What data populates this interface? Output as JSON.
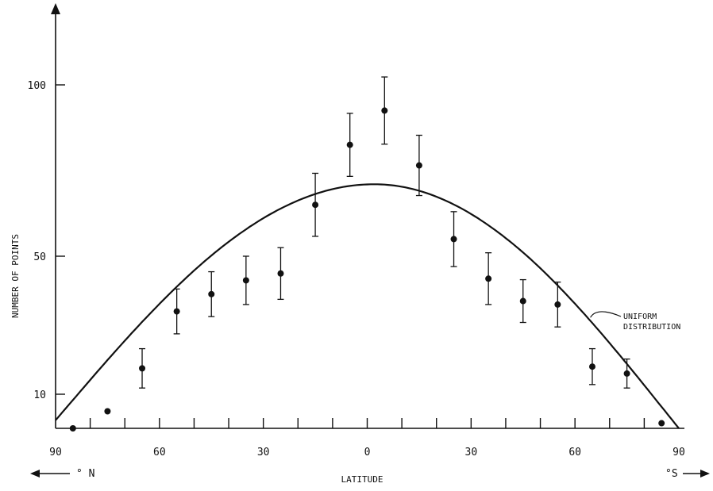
{
  "chart_data": {
    "type": "scatter",
    "xlabel": "LATITUDE",
    "ylabel": "NUMBER OF POINTS",
    "xlim": [
      -90,
      90
    ],
    "ylim": [
      0,
      130
    ],
    "x_tick_values": [
      -90,
      -60,
      -30,
      0,
      30,
      60,
      90
    ],
    "x_tick_labels": [
      "90",
      "60",
      "30",
      "0",
      "30",
      "60",
      "90"
    ],
    "y_tick_values": [
      10,
      50,
      100
    ],
    "y_tick_labels": [
      "10",
      "50",
      "100"
    ],
    "north_label": "° N",
    "south_label": "°S",
    "grid": false,
    "series": [
      {
        "kind": "points_with_error_bars",
        "points": [
          {
            "x": -85,
            "y": 0,
            "err": null
          },
          {
            "x": -75,
            "y": 5,
            "err": null
          },
          {
            "x": -65,
            "y": 17.5,
            "err": 5.7
          },
          {
            "x": -55,
            "y": 34,
            "err": 6.5
          },
          {
            "x": -45,
            "y": 39,
            "err": 6.5
          },
          {
            "x": -35,
            "y": 43,
            "err": 7
          },
          {
            "x": -25,
            "y": 45,
            "err": 7.5
          },
          {
            "x": -15,
            "y": 65,
            "err": 9.2
          },
          {
            "x": -5,
            "y": 82.5,
            "err": 9.2
          },
          {
            "x": 5,
            "y": 92.5,
            "err": 9.8
          },
          {
            "x": 15,
            "y": 76.5,
            "err": 8.8
          },
          {
            "x": 25,
            "y": 55,
            "err": 8
          },
          {
            "x": 35,
            "y": 43.5,
            "err": 7.5
          },
          {
            "x": 45,
            "y": 37,
            "err": 6.2
          },
          {
            "x": 55,
            "y": 36,
            "err": 6.5
          },
          {
            "x": 65,
            "y": 18,
            "err": 5.2
          },
          {
            "x": 75,
            "y": 16,
            "err": 4.2
          },
          {
            "x": 85,
            "y": 1.5,
            "err": null
          }
        ]
      },
      {
        "name": "UNIFORM DISTRIBUTION",
        "kind": "curve",
        "function": "cosine",
        "peak_x": 2,
        "peak_y": 71,
        "zero_at": [
          -92,
          90
        ]
      }
    ],
    "annotations": [
      {
        "text_lines": [
          "UNIFORM",
          "DISTRIBUTION"
        ],
        "target_series": "UNIFORM DISTRIBUTION",
        "target_x": 64
      }
    ]
  }
}
